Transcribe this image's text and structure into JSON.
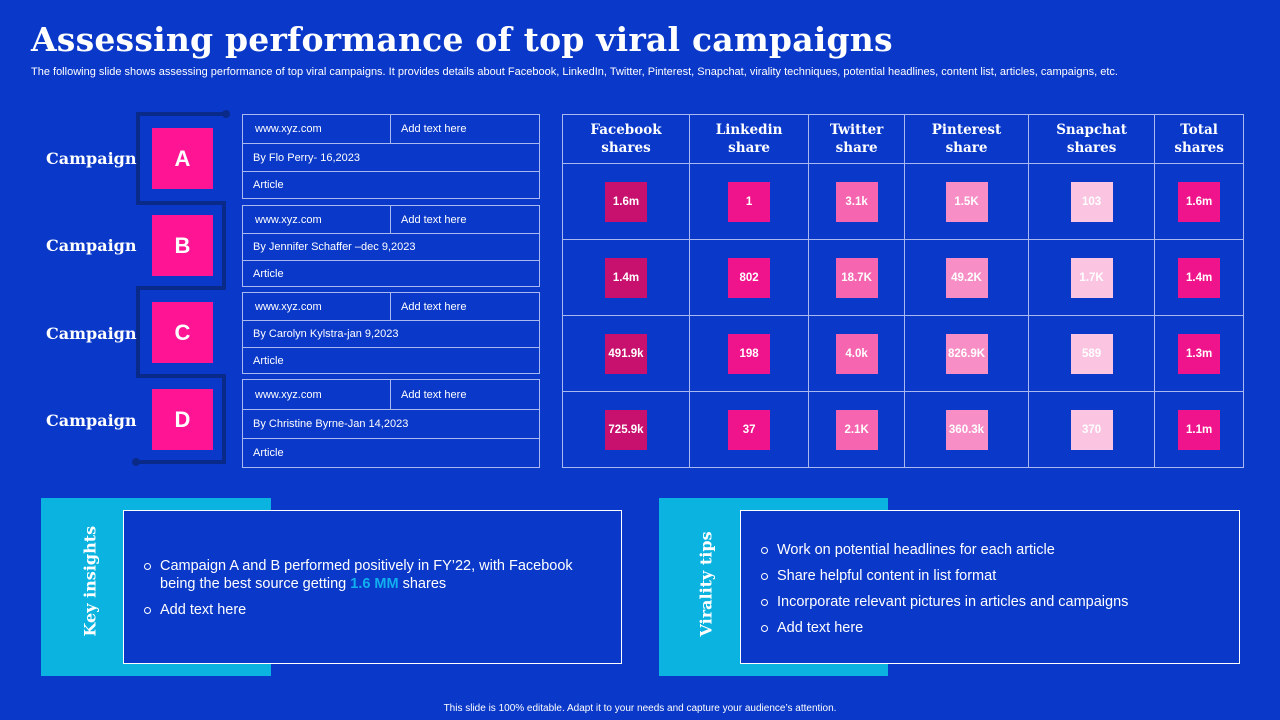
{
  "title": "Assessing performance of top viral campaigns",
  "subtitle": "The following slide shows assessing performance of top viral campaigns. It provides details about Facebook, LinkedIn, Twitter, Pinterest, Snapchat, virality techniques, potential headlines, content list, articles, campaigns, etc.",
  "campaigns": [
    {
      "label": "Campaign",
      "letter": "A",
      "url": "www.xyz.com",
      "note": "Add text here",
      "byline": "By Flo Perry- 16,2023",
      "type": "Article"
    },
    {
      "label": "Campaign",
      "letter": "B",
      "url": "www.xyz.com",
      "note": "Add text here",
      "byline": "By Jennifer Schaffer –dec 9,2023",
      "type": "Article"
    },
    {
      "label": "Campaign",
      "letter": "C",
      "url": "www.xyz.com",
      "note": "Add text here",
      "byline": "By Carolyn Kylstra-jan 9,2023",
      "type": "Article"
    },
    {
      "label": "Campaign",
      "letter": "D",
      "url": "www.xyz.com",
      "note": "Add text here",
      "byline": "By Christine Byrne-Jan 14,2023",
      "type": "Article"
    }
  ],
  "table": {
    "headers": [
      {
        "line1": "Facebook",
        "line2": "shares",
        "color": "#c8106e"
      },
      {
        "line1": "Linkedin",
        "line2": "share",
        "color": "#f0148c"
      },
      {
        "line1": "Twitter",
        "line2": "share",
        "color": "#f565b0"
      },
      {
        "line1": "Pinterest",
        "line2": "share",
        "color": "#f78fc6"
      },
      {
        "line1": "Snapchat",
        "line2": "shares",
        "color": "#fbc5e2"
      },
      {
        "line1": "Total",
        "line2": "shares",
        "color": "#f0148c"
      }
    ],
    "rows": [
      [
        "1.6m",
        "1",
        "3.1k",
        "1.5K",
        "103",
        "1.6m"
      ],
      [
        "1.4m",
        "802",
        "18.7K",
        "49.2K",
        "1.7K",
        "1.4m"
      ],
      [
        "491.9k",
        "198",
        "4.0k",
        "826.9K",
        "589",
        "1.3m"
      ],
      [
        "725.9k",
        "37",
        "2.1K",
        "360.3k",
        "370",
        "1.1m"
      ]
    ]
  },
  "insights": {
    "label": "Key insights",
    "item1_pre": "Campaign A and B performed positively in FY’22, with Facebook being the best source getting ",
    "item1_highlight": "1.6 MM",
    "item1_post": " shares",
    "item2": "Add text here"
  },
  "virality": {
    "label": "Virality tips",
    "items": [
      "Work on potential headlines for each article",
      "Share helpful content in list format",
      "Incorporate relevant pictures in articles and campaigns",
      "Add text here"
    ]
  },
  "footer": "This slide is 100% editable. Adapt it to your needs and capture your audience’s attention."
}
